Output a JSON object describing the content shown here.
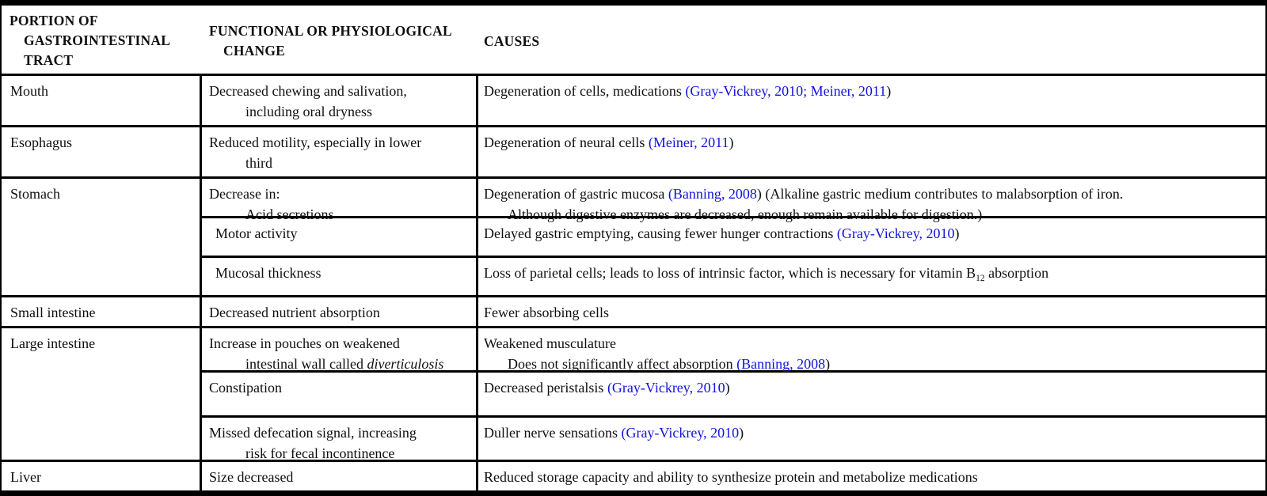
{
  "colors": {
    "link": "#1212dd",
    "text": "#0f0f0f",
    "border": "#000000",
    "background": "#ffffff"
  },
  "table": {
    "header": {
      "portion": {
        "lines": [
          {
            "ind": 0,
            "segs": [
              {
                "s": "plain",
                "t": "PORTION OF"
              }
            ]
          },
          {
            "ind": 1,
            "segs": [
              {
                "s": "plain",
                "t": "GASTROINTESTINAL"
              }
            ]
          },
          {
            "ind": 1,
            "segs": [
              {
                "s": "plain",
                "t": "TRACT"
              }
            ]
          }
        ]
      },
      "change": {
        "lines": [
          {
            "ind": 0,
            "segs": [
              {
                "s": "plain",
                "t": "FUNCTIONAL OR PHYSIOLOGICAL"
              }
            ]
          },
          {
            "ind": 1,
            "segs": [
              {
                "s": "plain",
                "t": "CHANGE"
              }
            ]
          }
        ]
      },
      "causes": {
        "lines": [
          {
            "ind": 0,
            "segs": [
              {
                "s": "plain",
                "t": "CAUSES"
              }
            ]
          }
        ]
      }
    },
    "groups": [
      {
        "portion": "Mouth",
        "rows": [
          {
            "inset": false,
            "change_lines": [
              {
                "ind": 0,
                "segs": [
                  {
                    "s": "plain",
                    "t": "Decreased chewing and salivation,"
                  }
                ]
              },
              {
                "ind": 1,
                "segs": [
                  {
                    "s": "plain",
                    "t": "including oral dryness"
                  }
                ]
              }
            ],
            "cause_lines": [
              {
                "ind": 0,
                "segs": [
                  {
                    "s": "plain",
                    "t": "Degeneration of cells, medications "
                  },
                  {
                    "s": "link",
                    "t": "(Gray-Vickrey, 2010;"
                  },
                  {
                    "s": "plain",
                    "t": " "
                  },
                  {
                    "s": "link",
                    "t": "Meiner, 2011"
                  },
                  {
                    "s": "plain",
                    "t": ")"
                  }
                ]
              }
            ]
          }
        ]
      },
      {
        "portion": "Esophagus",
        "rows": [
          {
            "inset": false,
            "change_lines": [
              {
                "ind": 0,
                "segs": [
                  {
                    "s": "plain",
                    "t": "Reduced motility, especially in lower"
                  }
                ]
              },
              {
                "ind": 1,
                "segs": [
                  {
                    "s": "plain",
                    "t": "third"
                  }
                ]
              }
            ],
            "cause_lines": [
              {
                "ind": 0,
                "segs": [
                  {
                    "s": "plain",
                    "t": "Degeneration of neural cells "
                  },
                  {
                    "s": "link",
                    "t": "(Meiner, 2011"
                  },
                  {
                    "s": "plain",
                    "t": ")"
                  }
                ]
              }
            ]
          }
        ]
      },
      {
        "portion": "Stomach",
        "rows": [
          {
            "inset": false,
            "change_lines": [
              {
                "ind": 0,
                "segs": [
                  {
                    "s": "plain",
                    "t": "Decrease in:"
                  }
                ]
              },
              {
                "ind": 1,
                "segs": [
                  {
                    "s": "plain",
                    "t": "Acid secretions"
                  }
                ]
              }
            ],
            "cause_lines": [
              {
                "ind": 0,
                "segs": [
                  {
                    "s": "plain",
                    "t": "Degeneration of gastric mucosa "
                  },
                  {
                    "s": "link",
                    "t": "(Banning, 2008"
                  },
                  {
                    "s": "plain",
                    "t": ") (Alkaline gastric medium contributes to malabsorption of iron."
                  }
                ]
              },
              {
                "ind": 1,
                "segs": [
                  {
                    "s": "plain",
                    "t": "Although digestive enzymes are decreased, enough remain available for digestion.)"
                  }
                ]
              }
            ]
          },
          {
            "inset": true,
            "change_lines": [
              {
                "ind": 0,
                "segs": [
                  {
                    "s": "plain",
                    "t": "Motor activity"
                  }
                ]
              }
            ],
            "cause_lines": [
              {
                "ind": 0,
                "segs": [
                  {
                    "s": "plain",
                    "t": "Delayed gastric emptying, causing fewer hunger contractions "
                  },
                  {
                    "s": "link",
                    "t": "(Gray-Vickrey, 2010"
                  },
                  {
                    "s": "plain",
                    "t": ")"
                  }
                ]
              }
            ]
          },
          {
            "inset": true,
            "change_lines": [
              {
                "ind": 0,
                "segs": [
                  {
                    "s": "plain",
                    "t": "Mucosal thickness"
                  }
                ]
              }
            ],
            "cause_lines": [
              {
                "ind": 0,
                "segs": [
                  {
                    "s": "plain",
                    "t": "Loss of parietal cells; leads to loss of intrinsic factor, which is necessary for vitamin B"
                  },
                  {
                    "s": "sub",
                    "t": "12"
                  },
                  {
                    "s": "plain",
                    "t": " absorption"
                  }
                ]
              }
            ]
          }
        ]
      },
      {
        "portion": "Small intestine",
        "rows": [
          {
            "inset": false,
            "change_lines": [
              {
                "ind": 0,
                "segs": [
                  {
                    "s": "plain",
                    "t": "Decreased nutrient absorption"
                  }
                ]
              }
            ],
            "cause_lines": [
              {
                "ind": 0,
                "segs": [
                  {
                    "s": "plain",
                    "t": "Fewer absorbing cells"
                  }
                ]
              }
            ]
          }
        ]
      },
      {
        "portion": "Large intestine",
        "rows": [
          {
            "inset": false,
            "change_lines": [
              {
                "ind": 0,
                "segs": [
                  {
                    "s": "plain",
                    "t": "Increase in pouches on weakened"
                  }
                ]
              },
              {
                "ind": 1,
                "segs": [
                  {
                    "s": "plain",
                    "t": "intestinal wall called "
                  },
                  {
                    "s": "italic",
                    "t": "diverticulosis"
                  }
                ]
              }
            ],
            "cause_lines": [
              {
                "ind": 0,
                "segs": [
                  {
                    "s": "plain",
                    "t": "Weakened musculature"
                  }
                ]
              },
              {
                "ind": 1,
                "segs": [
                  {
                    "s": "plain",
                    "t": "Does not significantly affect absorption "
                  },
                  {
                    "s": "link",
                    "t": "(Banning, 2008"
                  },
                  {
                    "s": "plain",
                    "t": ")"
                  }
                ]
              }
            ]
          },
          {
            "inset": false,
            "change_lines": [
              {
                "ind": 0,
                "segs": [
                  {
                    "s": "plain",
                    "t": "Constipation"
                  }
                ]
              }
            ],
            "cause_lines": [
              {
                "ind": 0,
                "segs": [
                  {
                    "s": "plain",
                    "t": "Decreased peristalsis "
                  },
                  {
                    "s": "link",
                    "t": "(Gray-Vickrey, 2010"
                  },
                  {
                    "s": "plain",
                    "t": ")"
                  }
                ]
              }
            ]
          },
          {
            "inset": false,
            "change_lines": [
              {
                "ind": 0,
                "segs": [
                  {
                    "s": "plain",
                    "t": "Missed defecation signal, increasing"
                  }
                ]
              },
              {
                "ind": 1,
                "segs": [
                  {
                    "s": "plain",
                    "t": "risk for fecal incontinence"
                  }
                ]
              }
            ],
            "cause_lines": [
              {
                "ind": 0,
                "segs": [
                  {
                    "s": "plain",
                    "t": "Duller nerve sensations "
                  },
                  {
                    "s": "link",
                    "t": "(Gray-Vickrey, 2010"
                  },
                  {
                    "s": "plain",
                    "t": ")"
                  }
                ]
              }
            ]
          }
        ]
      },
      {
        "portion": "Liver",
        "rows": [
          {
            "inset": false,
            "change_lines": [
              {
                "ind": 0,
                "segs": [
                  {
                    "s": "plain",
                    "t": "Size decreased"
                  }
                ]
              }
            ],
            "cause_lines": [
              {
                "ind": 0,
                "segs": [
                  {
                    "s": "plain",
                    "t": "Reduced storage capacity and ability to synthesize protein and metabolize medications"
                  }
                ]
              }
            ]
          }
        ]
      }
    ]
  }
}
